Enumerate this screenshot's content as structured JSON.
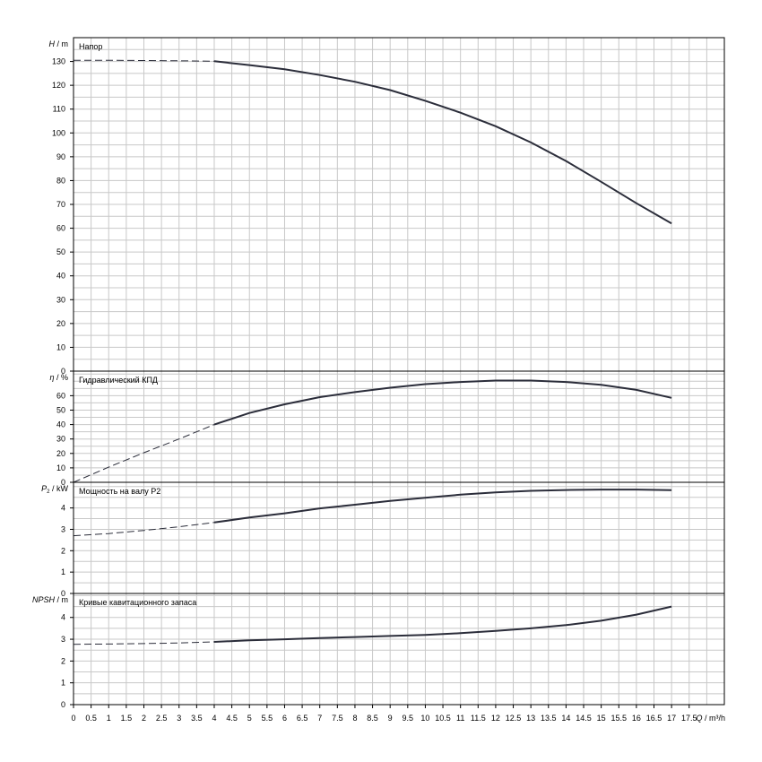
{
  "chart_data": [
    {
      "type": "line",
      "panel": "head",
      "title": "Напор",
      "ylabel_var": "H",
      "ylabel_unit": "/ m",
      "ylim": [
        0,
        140
      ],
      "yticks": [
        0,
        10,
        20,
        30,
        40,
        50,
        60,
        70,
        80,
        90,
        100,
        110,
        120,
        130
      ],
      "grid": true,
      "series": [
        {
          "style": "dashed",
          "x": [
            0,
            1,
            2,
            3,
            4
          ],
          "y": [
            130.5,
            130.5,
            130.4,
            130.3,
            130.1
          ]
        },
        {
          "style": "solid",
          "x": [
            4,
            5,
            6,
            7,
            8,
            9,
            10,
            11,
            12,
            13,
            14,
            15,
            16,
            17
          ],
          "y": [
            130.1,
            128.5,
            126.7,
            124.3,
            121.5,
            118.0,
            113.5,
            108.5,
            102.8,
            96.0,
            88.2,
            79.5,
            70.5,
            62.0
          ]
        }
      ]
    },
    {
      "type": "line",
      "panel": "efficiency",
      "title": "Гидравлический КПД",
      "ylabel_var": "η",
      "ylabel_unit": "/ %",
      "ylim": [
        0,
        77
      ],
      "yticks": [
        0,
        10,
        20,
        30,
        40,
        50,
        60
      ],
      "grid": true,
      "series": [
        {
          "style": "dashed",
          "x": [
            0,
            1,
            2,
            3,
            4
          ],
          "y": [
            0,
            10.5,
            20.5,
            30.0,
            40.0
          ]
        },
        {
          "style": "solid",
          "x": [
            4,
            5,
            6,
            7,
            8,
            9,
            10,
            11,
            12,
            13,
            14,
            15,
            16,
            17
          ],
          "y": [
            40.0,
            48.0,
            54.0,
            59.0,
            62.5,
            65.5,
            68.0,
            69.5,
            70.5,
            70.5,
            69.5,
            67.5,
            64.0,
            58.5
          ]
        }
      ]
    },
    {
      "type": "line",
      "panel": "power",
      "title": "Мощность на валу P2",
      "ylabel_var": "P",
      "ylabel_sub": "2",
      "ylabel_unit": "/ kW",
      "ylim": [
        0,
        5.2
      ],
      "yticks": [
        0,
        1,
        2,
        3,
        4
      ],
      "grid": true,
      "series": [
        {
          "style": "dashed",
          "x": [
            0,
            1,
            2,
            3,
            4
          ],
          "y": [
            2.7,
            2.8,
            2.95,
            3.12,
            3.32
          ]
        },
        {
          "style": "solid",
          "x": [
            4,
            5,
            6,
            7,
            8,
            9,
            10,
            11,
            12,
            13,
            14,
            15,
            16,
            17
          ],
          "y": [
            3.32,
            3.55,
            3.75,
            3.98,
            4.15,
            4.33,
            4.48,
            4.62,
            4.73,
            4.8,
            4.84,
            4.86,
            4.86,
            4.83
          ]
        }
      ]
    },
    {
      "type": "line",
      "panel": "npsh",
      "title": "Кривые кавитационного запаса",
      "ylabel_var": "NPSH",
      "ylabel_unit": "/ m",
      "ylim": [
        0,
        5.1
      ],
      "yticks": [
        0,
        1,
        2,
        3,
        4
      ],
      "grid": true,
      "series": [
        {
          "style": "dashed",
          "x": [
            0,
            1,
            2,
            3,
            4
          ],
          "y": [
            2.77,
            2.78,
            2.8,
            2.83,
            2.88
          ]
        },
        {
          "style": "solid",
          "x": [
            4,
            5,
            6,
            7,
            8,
            9,
            10,
            11,
            12,
            13,
            14,
            15,
            16,
            17
          ],
          "y": [
            2.88,
            2.95,
            3.0,
            3.05,
            3.1,
            3.15,
            3.2,
            3.28,
            3.38,
            3.5,
            3.65,
            3.85,
            4.13,
            4.5
          ]
        }
      ]
    }
  ],
  "x_axis": {
    "var": "Q",
    "unit": "/ m³/h",
    "xlim": [
      0,
      18.5
    ],
    "ticks": [
      "0",
      "0.5",
      "1",
      "1.5",
      "2",
      "2.5",
      "3",
      "3.5",
      "4",
      "4.5",
      "5",
      "5.5",
      "6",
      "6.5",
      "7",
      "7.5",
      "8",
      "8.5",
      "9",
      "9.5",
      "10",
      "10.5",
      "11",
      "11.5",
      "12",
      "12.5",
      "13",
      "13.5",
      "14",
      "14.5",
      "15",
      "15.5",
      "16",
      "16.5",
      "17",
      "17.5"
    ]
  }
}
